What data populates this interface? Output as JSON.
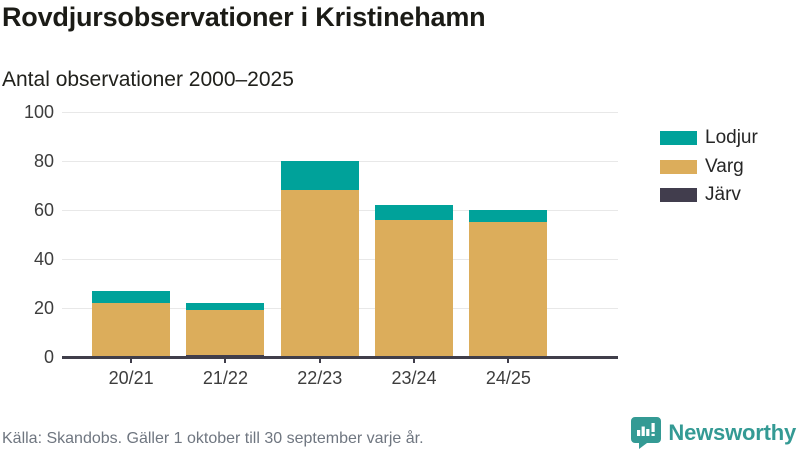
{
  "header": {
    "title": "Rovdjursobservationer i Kristinehamn",
    "subtitle": "Antal observationer 2000–2025"
  },
  "chart_data": {
    "type": "bar",
    "stacked": true,
    "title": "Rovdjursobservationer i Kristinehamn",
    "subtitle": "Antal observationer 2000–2025",
    "categories": [
      "20/21",
      "21/22",
      "22/23",
      "23/24",
      "24/25"
    ],
    "series": [
      {
        "name": "Järv",
        "color": "#413d4d",
        "values": [
          0,
          1,
          0,
          0,
          0
        ]
      },
      {
        "name": "Varg",
        "color": "#dcad5b",
        "values": [
          22,
          18,
          68,
          56,
          55
        ]
      },
      {
        "name": "Lodjur",
        "color": "#00a29a",
        "values": [
          5,
          3,
          12,
          6,
          5
        ]
      }
    ],
    "totals": [
      27,
      22,
      80,
      62,
      60
    ],
    "legend_order": [
      "Lodjur",
      "Varg",
      "Järv"
    ],
    "legend_position": "right",
    "ylim": [
      0,
      100
    ],
    "yticks": [
      0,
      20,
      40,
      60,
      80,
      100
    ],
    "grid": true,
    "xlabel": "",
    "ylabel": ""
  },
  "footer": {
    "source": "Källa: Skandobs. Gäller 1 oktober till 30 september varje år.",
    "brand": "Newsworthy"
  },
  "colors": {
    "lodjur": "#00a29a",
    "varg": "#dcad5b",
    "jarv": "#413d4d",
    "brand_teal": "#349a94",
    "axis": "#403e4a",
    "grid": "#e8e8e8",
    "text": "#3d3d3d"
  }
}
